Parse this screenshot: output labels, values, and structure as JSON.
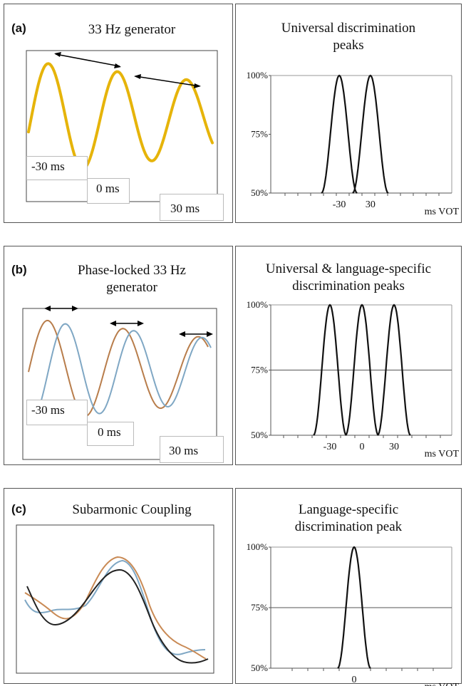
{
  "panels": [
    {
      "letter": "(a)",
      "left_title": "33 Hz generator",
      "right_title_line1": "Universal discrimination",
      "right_title_line2": "peaks",
      "labels": [
        "-30 ms",
        "0 ms",
        "30 ms"
      ],
      "wave_color": "#e6b40a"
    },
    {
      "letter": "(b)",
      "left_title_line1": "Phase-locked 33 Hz",
      "left_title_line2": "generator",
      "right_title_line1": "Universal & language-specific",
      "right_title_line2": "discrimination peaks",
      "labels": [
        "-30 ms",
        "0 ms",
        "30 ms"
      ],
      "wave_colors": [
        "#b87d4b",
        "#7fa7c4"
      ]
    },
    {
      "letter": "(c)",
      "left_title": "Subarmonic Coupling",
      "right_title_line1": "Language-specific",
      "right_title_line2": "discrimination peak",
      "wave_colors": [
        "#c98a55",
        "#7fa7c4",
        "#222222"
      ]
    }
  ],
  "chart_data": [
    {
      "type": "line",
      "x_unit": "ms VOT",
      "x_ticks": [
        "-30",
        "30"
      ],
      "y_ticks": [
        "100%",
        "75%",
        "50%"
      ],
      "ylim": [
        50,
        100
      ],
      "peaks_x": [
        -30,
        30
      ],
      "gridline_75": false
    },
    {
      "type": "line",
      "x_unit": "ms VOT",
      "x_ticks": [
        "-30",
        "0",
        "30"
      ],
      "y_ticks": [
        "100%",
        "75%",
        "50%"
      ],
      "ylim": [
        50,
        100
      ],
      "peaks_x": [
        -30,
        0,
        30
      ],
      "gridline_75": true
    },
    {
      "type": "line",
      "x_unit": "ms VOT",
      "x_ticks": [
        "0"
      ],
      "y_ticks": [
        "100%",
        "75%",
        "50%"
      ],
      "ylim": [
        50,
        100
      ],
      "peaks_x": [
        0
      ],
      "gridline_75": true
    }
  ]
}
